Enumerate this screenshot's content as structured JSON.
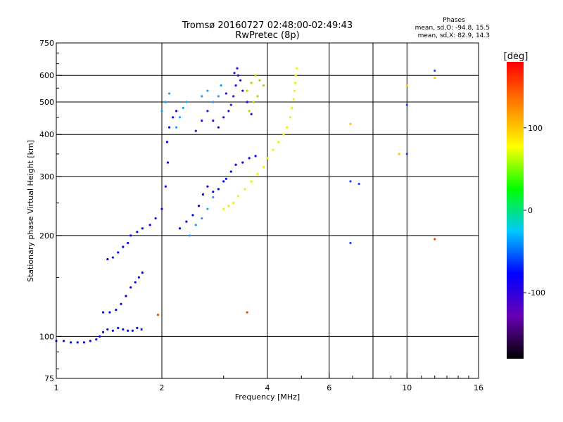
{
  "chart_data": {
    "type": "scatter",
    "title": "Tromsø 20160727 02:48:00-02:49:43",
    "subtitle": "RwPretec (8p)",
    "xlabel": "Frequency [MHz]",
    "ylabel": "Stationary phase Virtual Height [km]",
    "x_scale": "log",
    "y_scale": "log",
    "xlim": [
      1,
      16
    ],
    "ylim": [
      75,
      750
    ],
    "x_ticks": [
      1,
      2,
      4,
      6,
      10,
      16
    ],
    "x_gridlines": [
      2,
      4,
      6,
      8,
      10
    ],
    "y_ticks": [
      75,
      100,
      200,
      300,
      400,
      500,
      600,
      750
    ],
    "y_gridlines": [
      100,
      200,
      300,
      400,
      500,
      600
    ],
    "stats": {
      "title": "Phases",
      "line1": "mean, sd,O: -94.8, 15.5",
      "line2": "mean, sd,X:  82.9, 14.3"
    },
    "colorbar": {
      "label": "[deg]",
      "range": [
        -180,
        180
      ],
      "ticks": [
        100,
        0,
        -100
      ],
      "colors": [
        "#000000",
        "#6a00b4",
        "#0000ff",
        "#00c8ff",
        "#00ff00",
        "#ffff00",
        "#ff8000",
        "#ff0000"
      ]
    },
    "series": [
      {
        "color": "#0000ff",
        "points": [
          [
            1.0,
            97
          ],
          [
            1.05,
            97
          ],
          [
            1.1,
            96
          ],
          [
            1.15,
            96
          ],
          [
            1.2,
            96
          ],
          [
            1.25,
            97
          ],
          [
            1.3,
            98
          ],
          [
            1.33,
            100
          ],
          [
            1.36,
            103
          ],
          [
            1.4,
            105
          ],
          [
            1.45,
            104
          ],
          [
            1.5,
            106
          ],
          [
            1.55,
            105
          ],
          [
            1.6,
            104
          ],
          [
            1.65,
            104
          ],
          [
            1.7,
            106
          ],
          [
            1.75,
            105
          ],
          [
            1.36,
            118
          ],
          [
            1.42,
            118
          ],
          [
            1.48,
            120
          ],
          [
            1.53,
            125
          ],
          [
            1.58,
            132
          ],
          [
            1.63,
            140
          ],
          [
            1.68,
            145
          ],
          [
            1.72,
            150
          ],
          [
            1.76,
            155
          ],
          [
            1.4,
            170
          ],
          [
            1.45,
            172
          ],
          [
            1.5,
            178
          ],
          [
            1.55,
            185
          ],
          [
            1.6,
            190
          ],
          [
            1.63,
            200
          ],
          [
            1.7,
            205
          ],
          [
            1.76,
            210
          ],
          [
            1.85,
            215
          ],
          [
            1.92,
            225
          ],
          [
            2.0,
            240
          ],
          [
            2.05,
            280
          ],
          [
            2.08,
            330
          ],
          [
            2.07,
            380
          ],
          [
            2.1,
            420
          ],
          [
            2.15,
            450
          ],
          [
            2.2,
            470
          ],
          [
            2.25,
            210
          ],
          [
            2.35,
            220
          ],
          [
            2.45,
            230
          ],
          [
            2.55,
            245
          ],
          [
            2.62,
            265
          ],
          [
            2.7,
            280
          ],
          [
            2.8,
            270
          ],
          [
            2.9,
            275
          ],
          [
            3.0,
            290
          ],
          [
            3.05,
            295
          ],
          [
            3.15,
            310
          ],
          [
            3.25,
            325
          ],
          [
            3.4,
            330
          ],
          [
            3.55,
            340
          ],
          [
            3.7,
            345
          ]
        ]
      },
      {
        "color": "#3a00e0",
        "points": [
          [
            2.5,
            410
          ],
          [
            2.6,
            440
          ],
          [
            2.7,
            470
          ],
          [
            2.8,
            440
          ],
          [
            2.9,
            420
          ],
          [
            3.0,
            450
          ],
          [
            3.1,
            470
          ],
          [
            3.2,
            520
          ],
          [
            3.25,
            560
          ],
          [
            3.3,
            600
          ],
          [
            3.35,
            580
          ],
          [
            3.4,
            540
          ],
          [
            3.5,
            500
          ],
          [
            3.6,
            460
          ],
          [
            3.15,
            490
          ],
          [
            3.05,
            530
          ],
          [
            3.22,
            610
          ],
          [
            3.28,
            630
          ]
        ]
      },
      {
        "color": "#1aa0f0",
        "points": [
          [
            2.0,
            470
          ],
          [
            2.05,
            500
          ],
          [
            2.1,
            530
          ],
          [
            2.6,
            520
          ],
          [
            2.7,
            540
          ],
          [
            2.8,
            500
          ],
          [
            2.9,
            520
          ],
          [
            2.95,
            560
          ],
          [
            2.4,
            200
          ],
          [
            2.5,
            215
          ],
          [
            2.6,
            225
          ],
          [
            2.7,
            240
          ],
          [
            2.8,
            260
          ]
        ]
      },
      {
        "color": "#9ee000",
        "points": [
          [
            3.5,
            540
          ],
          [
            3.6,
            570
          ],
          [
            3.7,
            600
          ],
          [
            3.8,
            580
          ],
          [
            3.9,
            560
          ],
          [
            3.75,
            520
          ],
          [
            3.65,
            500
          ],
          [
            3.55,
            470
          ]
        ]
      },
      {
        "color": "#f0f000",
        "points": [
          [
            3.0,
            240
          ],
          [
            3.1,
            245
          ],
          [
            3.2,
            250
          ],
          [
            3.3,
            262
          ],
          [
            3.45,
            275
          ],
          [
            3.6,
            290
          ],
          [
            3.75,
            305
          ],
          [
            3.9,
            320
          ],
          [
            4.0,
            340
          ],
          [
            4.15,
            360
          ],
          [
            4.3,
            380
          ],
          [
            4.45,
            400
          ],
          [
            4.55,
            420
          ],
          [
            4.65,
            450
          ],
          [
            4.7,
            480
          ],
          [
            4.75,
            510
          ],
          [
            4.78,
            540
          ],
          [
            4.8,
            570
          ],
          [
            4.82,
            600
          ],
          [
            4.85,
            630
          ]
        ]
      },
      {
        "color": "#00b0ff",
        "points": [
          [
            2.2,
            420
          ],
          [
            2.25,
            450
          ],
          [
            2.3,
            480
          ],
          [
            2.35,
            500
          ]
        ]
      },
      {
        "color": "#ffc800",
        "points": [
          [
            6.9,
            430
          ],
          [
            9.5,
            350
          ],
          [
            12.0,
            590
          ],
          [
            10.0,
            560
          ]
        ]
      },
      {
        "color": "#ff4000",
        "points": [
          [
            1.95,
            116
          ],
          [
            3.5,
            118
          ],
          [
            12.0,
            195
          ]
        ]
      },
      {
        "color": "#2040ff",
        "points": [
          [
            6.9,
            290
          ],
          [
            7.3,
            285
          ],
          [
            10.0,
            350
          ],
          [
            12.0,
            620
          ],
          [
            6.9,
            190
          ],
          [
            10.0,
            490
          ]
        ]
      }
    ]
  }
}
